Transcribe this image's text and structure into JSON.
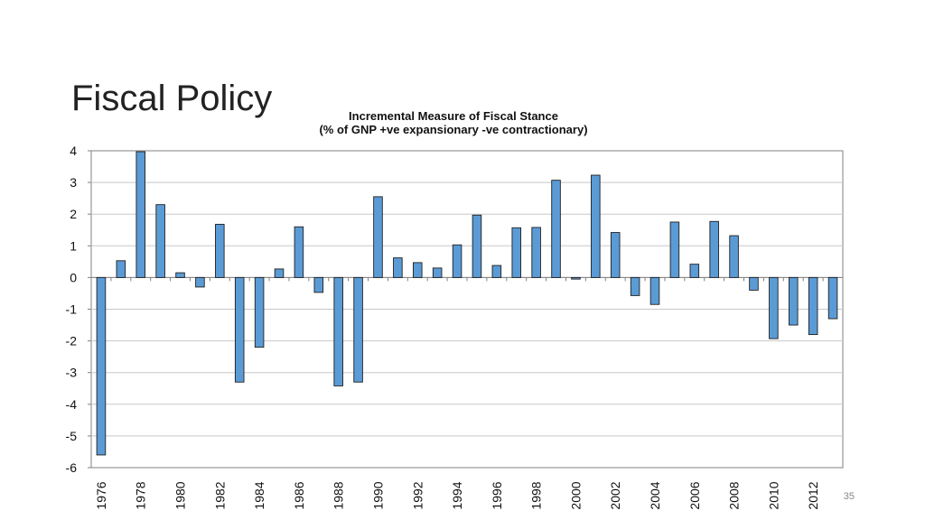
{
  "slide": {
    "title": "Fiscal Policy",
    "page_number": "35"
  },
  "colors": {
    "bar_fill": "#5b9bd5",
    "bar_stroke": "#1f1f1f",
    "grid": "#c8c8c8",
    "axis": "#808080"
  },
  "chart_data": {
    "type": "bar",
    "title": "Incremental Measure of Fiscal Stance",
    "subtitle": "(% of GNP +ve expansionary -ve contractionary)",
    "xlabel": "",
    "ylabel": "",
    "ylim": [
      -6,
      4
    ],
    "yticks": [
      4,
      3,
      2,
      1,
      0,
      -1,
      -2,
      -3,
      -4,
      -5,
      -6
    ],
    "grid": true,
    "categories": [
      "1976",
      "1977",
      "1978",
      "1979",
      "1980",
      "1981",
      "1982",
      "1983",
      "1984",
      "1985",
      "1986",
      "1987",
      "1988",
      "1989",
      "1990",
      "1991",
      "1992",
      "1993",
      "1994",
      "1995",
      "1996",
      "1997",
      "1998",
      "1999",
      "2000",
      "2001",
      "2002",
      "2003",
      "2004",
      "2005",
      "2006",
      "2007",
      "2008",
      "2009",
      "2010",
      "2011",
      "2012",
      "2013"
    ],
    "xtick_labels": [
      "1976",
      "1978",
      "1980",
      "1982",
      "1984",
      "1986",
      "1988",
      "1990",
      "1992",
      "1994",
      "1996",
      "1998",
      "2000",
      "2002",
      "2004",
      "2006",
      "2008",
      "2010",
      "2012"
    ],
    "values": [
      -5.6,
      0.53,
      3.97,
      2.3,
      0.15,
      -0.3,
      1.68,
      -3.3,
      -2.2,
      0.27,
      1.6,
      -0.47,
      -3.42,
      -3.3,
      2.55,
      0.62,
      0.47,
      0.3,
      1.03,
      1.97,
      0.38,
      1.57,
      1.58,
      3.07,
      -0.05,
      3.23,
      1.42,
      -0.57,
      -0.85,
      1.75,
      0.42,
      1.77,
      1.32,
      -0.4,
      -1.93,
      -1.5,
      -1.8,
      -1.3
    ]
  }
}
